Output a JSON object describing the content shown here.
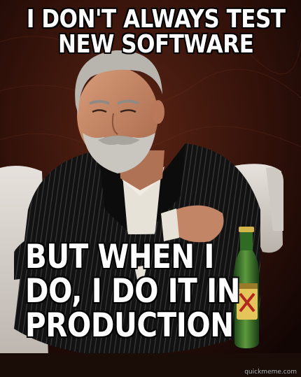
{
  "meme": {
    "top_text": "I DON'T ALWAYS TEST NEW SOFTWARE",
    "bottom_text": "BUT WHEN I DO, I DO IT IN PRODUCTION",
    "watermark": "quickmeme.com"
  },
  "colors": {
    "background": "#2a0f08",
    "jacket": "#141414",
    "shirt": "#e7e2d8",
    "skin": "#c98d6c",
    "hair": "#b8b4ae",
    "sofa": "#d9d4cf",
    "bottle": "#3e7a2e",
    "label": "#e4c55a",
    "caption": "#ffffff"
  }
}
